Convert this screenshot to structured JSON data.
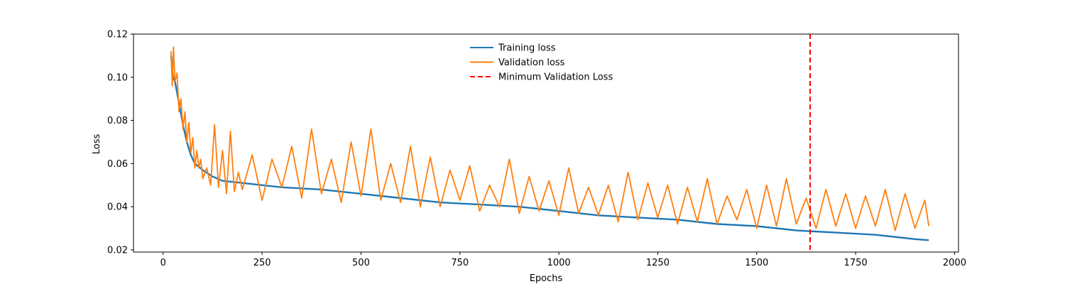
{
  "chart_data": {
    "type": "line",
    "title": "",
    "xlabel": "Epochs",
    "ylabel": "Loss",
    "xlim": [
      -75,
      2010
    ],
    "ylim": [
      0.019,
      0.12
    ],
    "x_ticks": [
      0,
      250,
      500,
      750,
      1000,
      1250,
      1500,
      1750,
      2000
    ],
    "x_tick_labels": [
      "0",
      "250",
      "500",
      "750",
      "1000",
      "1250",
      "1500",
      "1750",
      "2000"
    ],
    "y_ticks": [
      0.02,
      0.04,
      0.06,
      0.08,
      0.1,
      0.12
    ],
    "y_tick_labels": [
      "0.02",
      "0.04",
      "0.06",
      "0.08",
      "0.10",
      "0.12"
    ],
    "grid": false,
    "legend_position": "top-center",
    "series": [
      {
        "name": "Training loss",
        "color": "#1f77b4",
        "style": "solid",
        "x": [
          20,
          25,
          30,
          40,
          50,
          60,
          70,
          80,
          100,
          125,
          150,
          200,
          250,
          300,
          400,
          500,
          600,
          700,
          800,
          900,
          1000,
          1100,
          1200,
          1300,
          1400,
          1500,
          1600,
          1700,
          1800,
          1900,
          1935
        ],
        "y": [
          0.11,
          0.1,
          0.098,
          0.088,
          0.078,
          0.07,
          0.064,
          0.06,
          0.057,
          0.054,
          0.052,
          0.051,
          0.05,
          0.049,
          0.048,
          0.046,
          0.044,
          0.042,
          0.041,
          0.04,
          0.038,
          0.036,
          0.035,
          0.034,
          0.032,
          0.031,
          0.029,
          0.028,
          0.027,
          0.025,
          0.0245
        ]
      },
      {
        "name": "Validation loss",
        "color": "#ff7f0e",
        "style": "solid",
        "x": [
          20,
          23,
          26,
          30,
          35,
          40,
          45,
          50,
          55,
          60,
          65,
          70,
          75,
          80,
          85,
          90,
          95,
          100,
          110,
          120,
          130,
          140,
          150,
          160,
          170,
          180,
          190,
          200,
          225,
          250,
          275,
          300,
          325,
          350,
          375,
          400,
          425,
          450,
          475,
          500,
          525,
          550,
          575,
          600,
          625,
          650,
          675,
          700,
          725,
          750,
          775,
          800,
          825,
          850,
          875,
          900,
          925,
          950,
          975,
          1000,
          1025,
          1050,
          1075,
          1100,
          1125,
          1150,
          1175,
          1200,
          1225,
          1250,
          1275,
          1300,
          1325,
          1350,
          1375,
          1400,
          1425,
          1450,
          1475,
          1500,
          1525,
          1550,
          1575,
          1600,
          1625,
          1650,
          1675,
          1700,
          1725,
          1750,
          1775,
          1800,
          1825,
          1850,
          1875,
          1900,
          1925,
          1935
        ],
        "y": [
          0.112,
          0.096,
          0.114,
          0.098,
          0.102,
          0.084,
          0.09,
          0.076,
          0.084,
          0.07,
          0.079,
          0.065,
          0.072,
          0.058,
          0.066,
          0.058,
          0.062,
          0.053,
          0.058,
          0.05,
          0.078,
          0.049,
          0.066,
          0.046,
          0.075,
          0.047,
          0.056,
          0.048,
          0.064,
          0.043,
          0.062,
          0.049,
          0.068,
          0.044,
          0.076,
          0.046,
          0.062,
          0.042,
          0.07,
          0.045,
          0.076,
          0.043,
          0.06,
          0.042,
          0.068,
          0.04,
          0.063,
          0.04,
          0.057,
          0.043,
          0.059,
          0.038,
          0.05,
          0.04,
          0.062,
          0.037,
          0.054,
          0.038,
          0.052,
          0.036,
          0.058,
          0.037,
          0.049,
          0.036,
          0.05,
          0.033,
          0.056,
          0.034,
          0.051,
          0.035,
          0.05,
          0.032,
          0.049,
          0.033,
          0.053,
          0.032,
          0.045,
          0.034,
          0.048,
          0.03,
          0.05,
          0.031,
          0.053,
          0.032,
          0.044,
          0.03,
          0.048,
          0.031,
          0.046,
          0.03,
          0.045,
          0.031,
          0.048,
          0.029,
          0.046,
          0.03,
          0.043,
          0.031
        ]
      },
      {
        "name": "Minimum Validation Loss",
        "color": "#ff0000",
        "style": "dashed",
        "vertical_line_x": 1635
      }
    ]
  }
}
